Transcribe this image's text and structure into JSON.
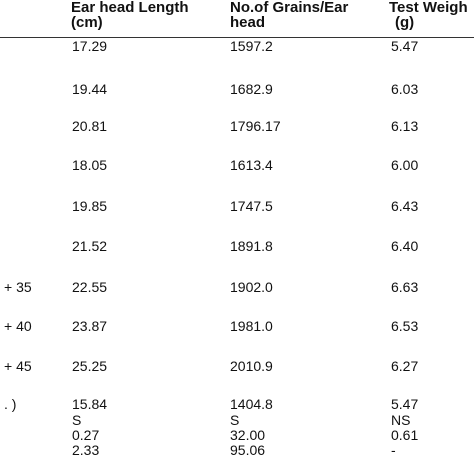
{
  "header": {
    "col1_line1": "Ear head Length",
    "col1_line2": "(cm)",
    "col2_line1": "No.of Grains/Ear",
    "col2_line2": "head",
    "col3_line1": "Test Weigh",
    "col3_line2": "(g)"
  },
  "rows": [
    {
      "label": "",
      "length": "17.29",
      "grains": "1597.2",
      "weight": "5.47"
    },
    {
      "label": "",
      "length": "19.44",
      "grains": "1682.9",
      "weight": "6.03"
    },
    {
      "label": "",
      "length": "20.81",
      "grains": "1796.17",
      "weight": "6.13"
    },
    {
      "label": "",
      "length": "18.05",
      "grains": "1613.4",
      "weight": "6.00"
    },
    {
      "label": "",
      "length": "19.85",
      "grains": "1747.5",
      "weight": "6.43"
    },
    {
      "label": "",
      "length": "21.52",
      "grains": "1891.8",
      "weight": "6.40"
    },
    {
      "label": "+ 35",
      "length": "22.55",
      "grains": "1902.0",
      "weight": "6.63"
    },
    {
      "label": "+ 40",
      "length": "23.87",
      "grains": "1981.0",
      "weight": "6.53"
    },
    {
      "label": "+ 45",
      "length": "25.25",
      "grains": "2010.9",
      "weight": "6.27"
    },
    {
      "label": ". )",
      "length": "15.84",
      "grains": "1404.8",
      "weight": "5.47"
    }
  ],
  "stats": [
    {
      "length": "S",
      "grains": "S",
      "weight": "NS"
    },
    {
      "length": "0.27",
      "grains": "32.00",
      "weight": "0.61"
    },
    {
      "length": "2.33",
      "grains": "95.06",
      "weight": "-"
    }
  ]
}
